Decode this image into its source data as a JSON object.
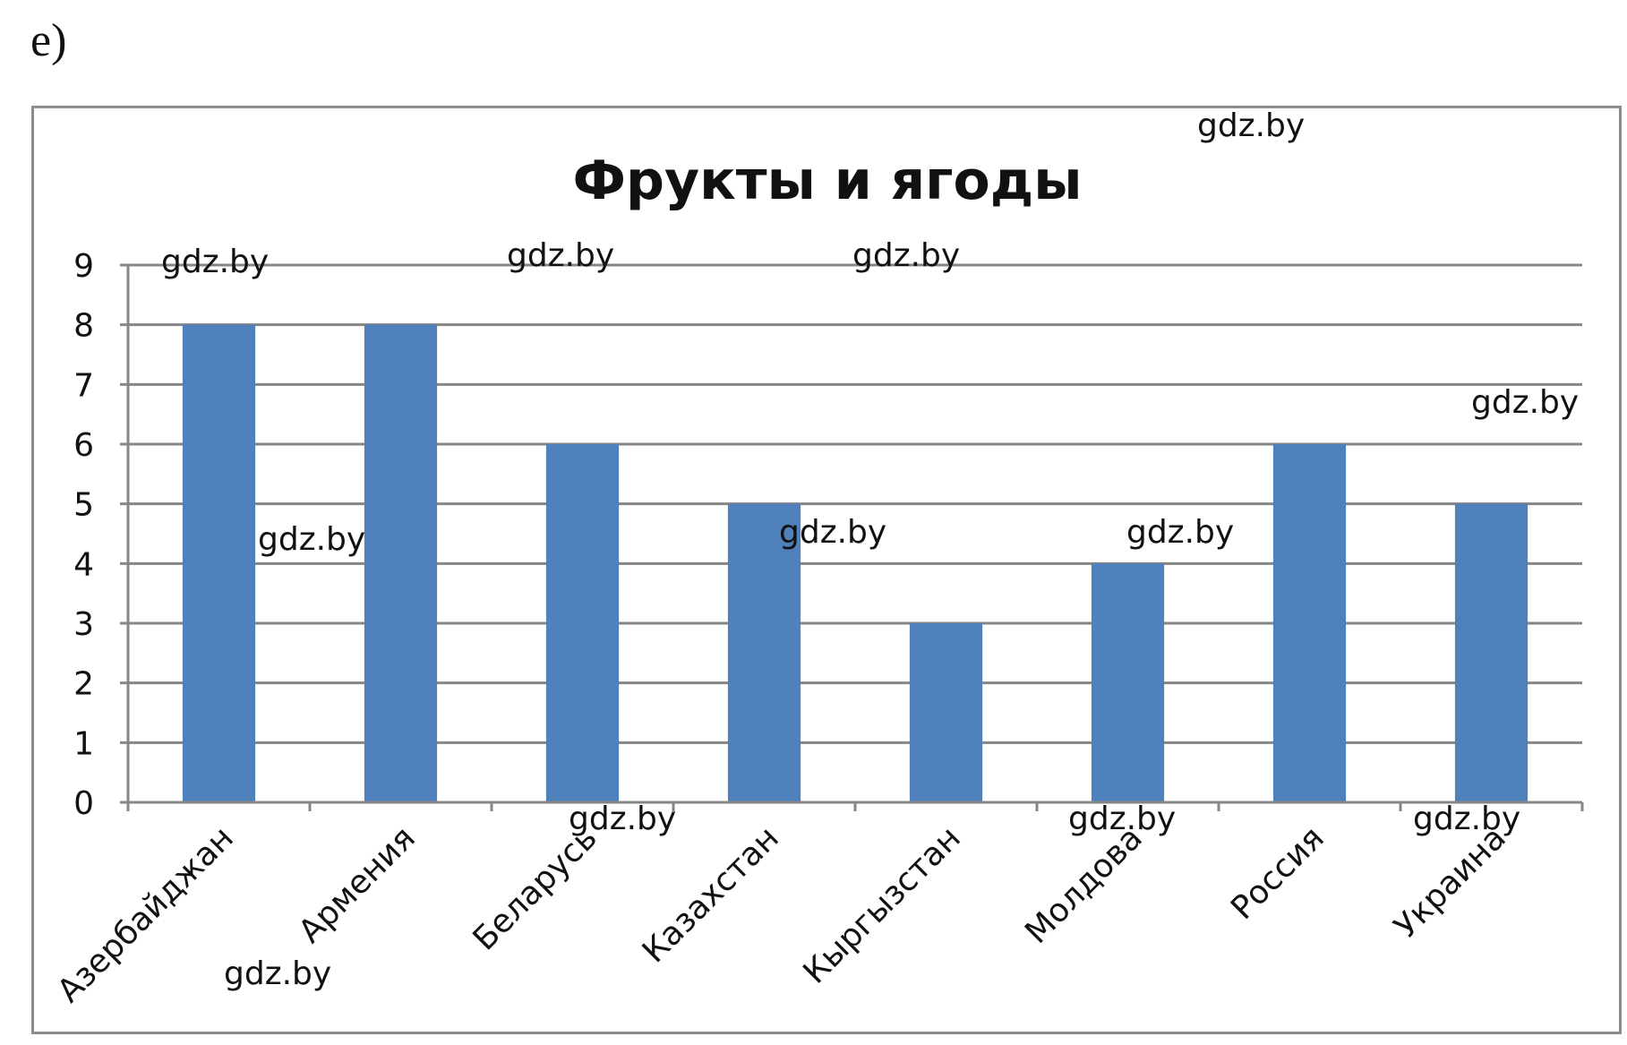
{
  "part_label": "e)",
  "watermarks": [
    "gdz.by",
    "gdz.by",
    "gdz.by",
    "gdz.by",
    "gdz.by",
    "gdz.by",
    "gdz.by",
    "gdz.by",
    "gdz.by",
    "gdz.by",
    "gdz.by",
    "gdz.by"
  ],
  "colors": {
    "bar": "#4f81bd",
    "grid": "#868686",
    "axis": "#868686",
    "text": "#111111"
  },
  "chart_data": {
    "type": "bar",
    "title": "Фрукты и ягоды",
    "categories": [
      "Азербайджан",
      "Армения",
      "Беларусь",
      "Казахстан",
      "Кыргызстан",
      "Молдова",
      "Россия",
      "Украина"
    ],
    "values": [
      8,
      8,
      6,
      5,
      3,
      4,
      6,
      5
    ],
    "yticks": [
      "0",
      "1",
      "2",
      "3",
      "4",
      "5",
      "6",
      "7",
      "8",
      "9"
    ],
    "ylim": [
      0,
      9
    ],
    "xlabel": "",
    "ylabel": "",
    "grid": true,
    "legend": "none"
  }
}
